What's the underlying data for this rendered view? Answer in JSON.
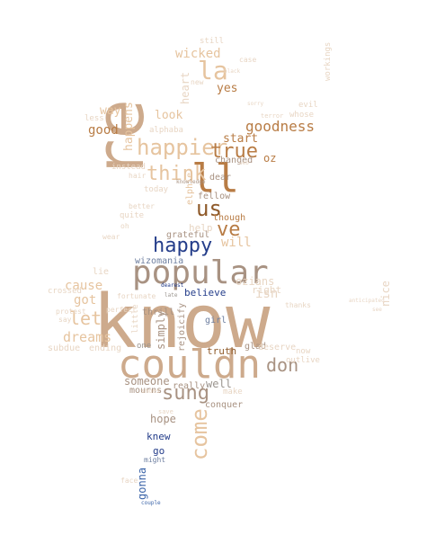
{
  "palette": {
    "tan": "#cdaa8c",
    "peach": "#e6c49f",
    "brown": "#b87c45",
    "dark_brown": "#8f5a2a",
    "taupe": "#a89282",
    "light": "#e8d6c4",
    "grey": "#9a948e",
    "navy": "#243d8a",
    "blue": "#3b64a8",
    "slate": "#6e7fa0"
  },
  "words": [
    {
      "t": "re",
      "c": "tan"
    },
    {
      "t": "know",
      "c": "tan"
    },
    {
      "t": "couldn",
      "c": "tan"
    },
    {
      "t": "popular",
      "c": "taupe"
    },
    {
      "t": "happier",
      "c": "peach"
    },
    {
      "t": "ll",
      "c": "brown"
    },
    {
      "t": "la",
      "c": "peach"
    },
    {
      "t": "think",
      "c": "peach"
    },
    {
      "t": "true",
      "c": "brown"
    },
    {
      "t": "ve",
      "c": "brown"
    },
    {
      "t": "us",
      "c": "dark_brown"
    },
    {
      "t": "happy",
      "c": "navy"
    },
    {
      "t": "sung",
      "c": "taupe"
    },
    {
      "t": "come",
      "c": "peach"
    },
    {
      "t": "don",
      "c": "taupe"
    },
    {
      "t": "let",
      "c": "peach"
    },
    {
      "t": "goodness",
      "c": "brown"
    },
    {
      "t": "good",
      "c": "brown"
    },
    {
      "t": "got",
      "c": "peach"
    },
    {
      "t": "dreams",
      "c": "peach"
    },
    {
      "t": "cause",
      "c": "peach"
    },
    {
      "t": "wicked",
      "c": "peach"
    },
    {
      "t": "yes",
      "c": "brown"
    },
    {
      "t": "start",
      "c": "brown"
    },
    {
      "t": "will",
      "c": "peach"
    },
    {
      "t": "oz",
      "c": "brown"
    },
    {
      "t": "way",
      "c": "peach"
    },
    {
      "t": "look",
      "c": "peach"
    },
    {
      "t": "happens",
      "c": "peach"
    },
    {
      "t": "heart",
      "c": "light"
    },
    {
      "t": "isn",
      "c": "light"
    },
    {
      "t": "right",
      "c": "light"
    },
    {
      "t": "ozians",
      "c": "light"
    },
    {
      "t": "simply",
      "c": "taupe"
    },
    {
      "t": "someone",
      "c": "taupe"
    },
    {
      "t": "hope",
      "c": "taupe"
    },
    {
      "t": "well",
      "c": "grey"
    },
    {
      "t": "believe",
      "c": "navy"
    },
    {
      "t": "wizomania",
      "c": "slate"
    },
    {
      "t": "grateful",
      "c": "taupe"
    },
    {
      "t": "help",
      "c": "light"
    },
    {
      "t": "elphie",
      "c": "peach"
    },
    {
      "t": "fellow",
      "c": "taupe"
    },
    {
      "t": "though",
      "c": "brown"
    },
    {
      "t": "changed",
      "c": "taupe"
    },
    {
      "t": "dear",
      "c": "taupe"
    },
    {
      "t": "thrill",
      "c": "taupe"
    },
    {
      "t": "rejoicify",
      "c": "taupe"
    },
    {
      "t": "truth",
      "c": "dark_brown"
    },
    {
      "t": "girl",
      "c": "slate"
    },
    {
      "t": "glad",
      "c": "taupe"
    },
    {
      "t": "deserve",
      "c": "light"
    },
    {
      "t": "gonna",
      "c": "blue"
    },
    {
      "t": "knew",
      "c": "navy"
    },
    {
      "t": "go",
      "c": "navy"
    },
    {
      "t": "might",
      "c": "slate"
    },
    {
      "t": "mourns",
      "c": "taupe"
    },
    {
      "t": "conquer",
      "c": "taupe"
    },
    {
      "t": "really",
      "c": "taupe"
    },
    {
      "t": "ending",
      "c": "light"
    },
    {
      "t": "subdue",
      "c": "light"
    },
    {
      "t": "crossed",
      "c": "light"
    },
    {
      "t": "lie",
      "c": "light"
    },
    {
      "t": "instead",
      "c": "light"
    },
    {
      "t": "less",
      "c": "light"
    },
    {
      "t": "today",
      "c": "light"
    },
    {
      "t": "quite",
      "c": "light"
    },
    {
      "t": "better",
      "c": "light"
    },
    {
      "t": "alphaba",
      "c": "light"
    },
    {
      "t": "still",
      "c": "light"
    },
    {
      "t": "case",
      "c": "light"
    },
    {
      "t": "evil",
      "c": "light"
    },
    {
      "t": "whose",
      "c": "light"
    },
    {
      "t": "nice",
      "c": "light"
    },
    {
      "t": "workings",
      "c": "light"
    },
    {
      "t": "make",
      "c": "light"
    },
    {
      "t": "now",
      "c": "light"
    },
    {
      "t": "outlive",
      "c": "light"
    },
    {
      "t": "thanks",
      "c": "light"
    },
    {
      "t": "little",
      "c": "light"
    },
    {
      "t": "fortunate",
      "c": "light"
    },
    {
      "t": "perfect",
      "c": "light"
    },
    {
      "t": "protest",
      "c": "light"
    },
    {
      "t": "say",
      "c": "light"
    },
    {
      "t": "face",
      "c": "light"
    },
    {
      "t": "one",
      "c": "grey"
    },
    {
      "t": "shoes",
      "c": "light"
    },
    {
      "t": "save",
      "c": "light"
    },
    {
      "t": "wear",
      "c": "light"
    },
    {
      "t": "oh",
      "c": "light"
    },
    {
      "t": "knowledge",
      "c": "taupe"
    },
    {
      "t": "terror",
      "c": "light"
    },
    {
      "t": "web",
      "c": "light"
    },
    {
      "t": "black",
      "c": "light"
    },
    {
      "t": "sorry",
      "c": "light"
    },
    {
      "t": "new",
      "c": "light"
    },
    {
      "t": "dearest",
      "c": "navy"
    },
    {
      "t": "couple",
      "c": "blue"
    },
    {
      "t": "late",
      "c": "grey"
    },
    {
      "t": "hair",
      "c": "light"
    },
    {
      "t": "anticipated",
      "c": "light"
    },
    {
      "t": "see",
      "c": "light"
    }
  ]
}
